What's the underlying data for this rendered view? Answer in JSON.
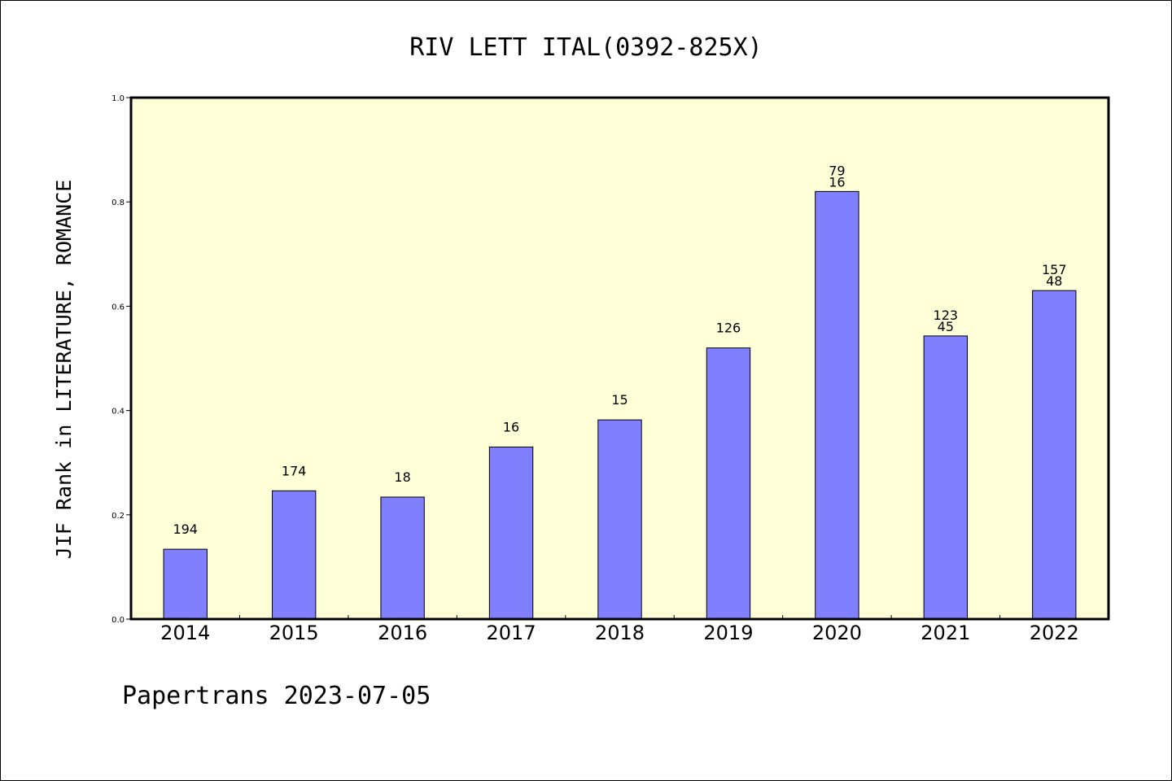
{
  "chart_data": {
    "type": "bar",
    "title": "RIV LETT ITAL(0392-825X)",
    "ylabel": "JIF Rank in LITERATURE, ROMANCE",
    "xlabel": "",
    "ylim": [
      0,
      1.0
    ],
    "yticks": [
      "0.0",
      "0.2",
      "0.4",
      "0.6",
      "0.8",
      "1.0"
    ],
    "categories": [
      "2014",
      "2015",
      "2016",
      "2017",
      "2018",
      "2019",
      "2020",
      "2021",
      "2022"
    ],
    "values": [
      0.134,
      0.246,
      0.234,
      0.33,
      0.382,
      0.52,
      0.82,
      0.543,
      0.63
    ],
    "labels": [
      [
        "194"
      ],
      [
        "174"
      ],
      [
        "18"
      ],
      [
        "16"
      ],
      [
        "15"
      ],
      [
        "126"
      ],
      [
        "79",
        "16"
      ],
      [
        "123",
        "45"
      ],
      [
        "157",
        "48"
      ]
    ],
    "bar_color": "#8080ff",
    "plot_background": "#ffffd8",
    "grid": false
  },
  "footer": "Papertrans 2023-07-05"
}
